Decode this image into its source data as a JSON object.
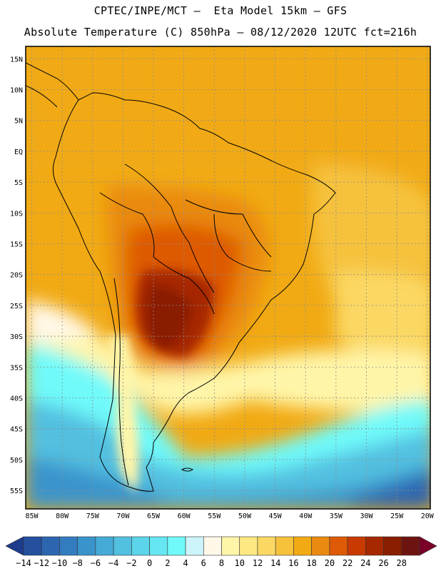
{
  "header": {
    "line1": "CPTEC/INPE/MCT –  Eta Model 15km – GFS",
    "line2": "Absolute Temperature (C) 850hPa – 08/12/2020 12UTC fct=216h"
  },
  "map": {
    "lat_labels": [
      "15N",
      "10N",
      "5N",
      "EQ",
      "5S",
      "10S",
      "15S",
      "20S",
      "25S",
      "30S",
      "35S",
      "40S",
      "45S",
      "50S",
      "55S"
    ],
    "lat_values": [
      15,
      10,
      5,
      0,
      -5,
      -10,
      -15,
      -20,
      -25,
      -30,
      -35,
      -40,
      -45,
      -50,
      -55
    ],
    "lon_labels": [
      "85W",
      "80W",
      "75W",
      "70W",
      "65W",
      "60W",
      "55W",
      "50W",
      "45W",
      "40W",
      "35W",
      "30W",
      "25W",
      "20W"
    ],
    "lon_values": [
      -85,
      -80,
      -75,
      -70,
      -65,
      -60,
      -55,
      -50,
      -45,
      -40,
      -35,
      -30,
      -25,
      -20
    ],
    "extent": {
      "lon_min": -86,
      "lon_max": -19.5,
      "lat_min": -58,
      "lat_max": 17
    }
  },
  "colorbar": {
    "labels": [
      "-14",
      "-12",
      "-10",
      "-8",
      "-6",
      "-4",
      "-2",
      "0",
      "2",
      "4",
      "6",
      "8",
      "10",
      "12",
      "14",
      "16",
      "18",
      "20",
      "22",
      "24",
      "26",
      "28"
    ],
    "colors": [
      "#1e3c8c",
      "#24509e",
      "#2d66b0",
      "#347cc0",
      "#3a94cc",
      "#45aad6",
      "#52c0e0",
      "#5cd4ea",
      "#66e6f2",
      "#70fafa",
      "#cdf4fa",
      "#fff8e8",
      "#fff5a8",
      "#fde882",
      "#fbd864",
      "#f6c23c",
      "#f1aa14",
      "#ea8a10",
      "#de5a06",
      "#c93a00",
      "#a62800",
      "#8a1e00",
      "#6e1410",
      "#7a0028"
    ]
  }
}
